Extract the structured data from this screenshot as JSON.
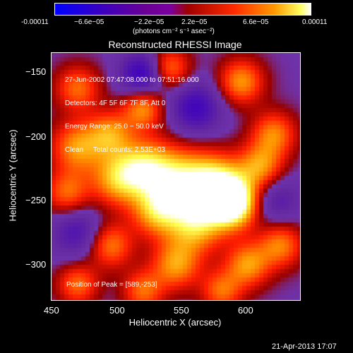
{
  "colorbar": {
    "ticks": [
      "-0.00011",
      "−6.6e−05",
      "−2.2e−05",
      "2.2e−05",
      "6.6e−05",
      "0.00011"
    ],
    "units": "(photons cm⁻² s⁻¹ asec⁻²)"
  },
  "plot": {
    "title": "Reconstructed RHESSI Image",
    "xlabel": "Heliocentric X (arcsec)",
    "ylabel": "Heliocentric Y (arcsec)",
    "xticks": [
      "450",
      "500",
      "550",
      "600"
    ],
    "yticks": [
      "−150",
      "−200",
      "−250",
      "−300"
    ],
    "info": [
      "27-Jun-2002 07:47:08.000 to 07:51:16.000",
      "Detectors: 4F 5F 6F 7F 8F, Att 0",
      "Energy Range: 25.0 − 50.0 keV",
      "Clean     Total counts: 2.53E+03"
    ],
    "peak": "Position of Peak = [589,-253]"
  },
  "footer": {
    "date": "21-Apr-2013 17:07"
  },
  "image": {
    "xlim": [
      450,
      640
    ],
    "ylim": [
      -327,
      -138
    ],
    "blobs": [
      {
        "x": 589,
        "y": -253,
        "v": 1.0,
        "s": 13
      },
      {
        "x": 575,
        "y": -240,
        "v": 0.85,
        "s": 16
      },
      {
        "x": 545,
        "y": -238,
        "v": 0.75,
        "s": 18
      },
      {
        "x": 560,
        "y": -270,
        "v": 0.6,
        "s": 15
      },
      {
        "x": 520,
        "y": -225,
        "v": 0.6,
        "s": 15
      },
      {
        "x": 500,
        "y": -235,
        "v": 0.55,
        "s": 14
      },
      {
        "x": 470,
        "y": -210,
        "v": 0.55,
        "s": 14
      },
      {
        "x": 495,
        "y": -200,
        "v": 0.5,
        "s": 12
      },
      {
        "x": 462,
        "y": -245,
        "v": 0.45,
        "s": 12
      },
      {
        "x": 520,
        "y": -180,
        "v": 0.55,
        "s": 11
      },
      {
        "x": 470,
        "y": -165,
        "v": 0.45,
        "s": 12
      },
      {
        "x": 540,
        "y": -150,
        "v": 0.5,
        "s": 11
      },
      {
        "x": 595,
        "y": -160,
        "v": 0.55,
        "s": 12
      },
      {
        "x": 620,
        "y": -200,
        "v": 0.5,
        "s": 12
      },
      {
        "x": 610,
        "y": -225,
        "v": 0.55,
        "s": 12
      },
      {
        "x": 625,
        "y": -285,
        "v": 0.5,
        "s": 12
      },
      {
        "x": 600,
        "y": -300,
        "v": 0.55,
        "s": 12
      },
      {
        "x": 545,
        "y": -300,
        "v": 0.55,
        "s": 13
      },
      {
        "x": 495,
        "y": -285,
        "v": 0.5,
        "s": 12
      },
      {
        "x": 470,
        "y": -315,
        "v": 0.45,
        "s": 11
      },
      {
        "x": 520,
        "y": -320,
        "v": 0.45,
        "s": 11
      },
      {
        "x": 580,
        "y": -320,
        "v": 0.45,
        "s": 11
      },
      {
        "x": 530,
        "y": -260,
        "v": 0.5,
        "s": 13
      },
      {
        "x": 560,
        "y": -180,
        "v": -0.45,
        "s": 14
      },
      {
        "x": 520,
        "y": -155,
        "v": -0.55,
        "s": 12
      },
      {
        "x": 470,
        "y": -275,
        "v": -0.35,
        "s": 14
      },
      {
        "x": 620,
        "y": -250,
        "v": -0.3,
        "s": 14
      }
    ]
  }
}
